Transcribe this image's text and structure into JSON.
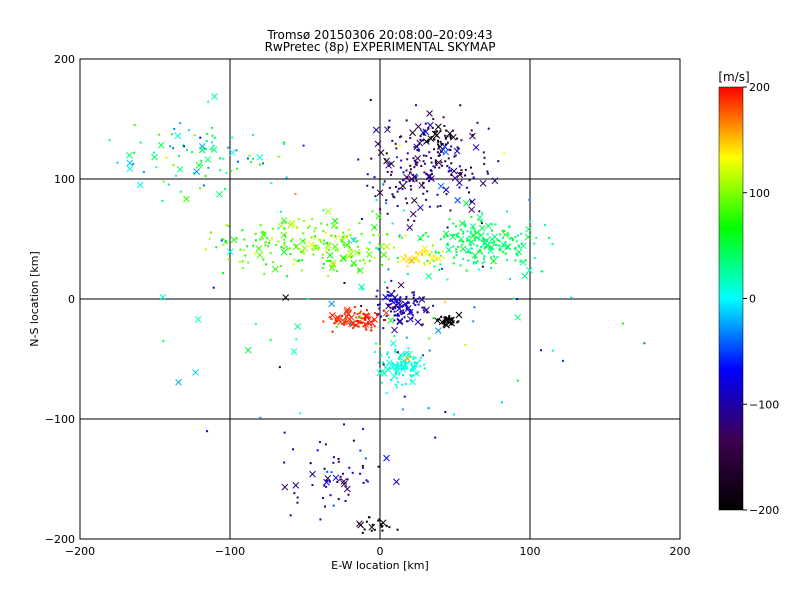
{
  "chart_data": {
    "type": "scatter",
    "title": "Tromsø 20150306 20:08:00–20:09:43",
    "subtitle": "RwPretec (8p) EXPERIMENTAL SKYMAP",
    "xlabel": "E-W location [km]",
    "ylabel": "N-S location [km]",
    "xlim": [
      -200,
      200
    ],
    "ylim": [
      -200,
      200
    ],
    "xticks": [
      "-200",
      "-100",
      "0",
      "100",
      "200"
    ],
    "yticks": [
      "-200",
      "-100",
      "0",
      "100",
      "200"
    ],
    "grid": true,
    "colorbar": {
      "label": "[m/s]",
      "range": [
        -200,
        200
      ],
      "ticks": [
        "-200",
        "-100",
        "0",
        "100",
        "200"
      ],
      "colormap": [
        "#000000",
        "#3d0050",
        "#0000ff",
        "#00ffff",
        "#00ff00",
        "#ffff00",
        "#ff0000"
      ]
    },
    "clusters": [
      {
        "name": "upper-left scatter",
        "x": -120,
        "y": 120,
        "sx": 45,
        "sy": 30,
        "count": 90,
        "v": 20,
        "vs": 70
      },
      {
        "name": "north cluster",
        "x": 30,
        "y": 110,
        "sx": 35,
        "sy": 35,
        "count": 230,
        "v": -120,
        "vs": 50
      },
      {
        "name": "northeast black",
        "x": 40,
        "y": 135,
        "sx": 10,
        "sy": 8,
        "count": 25,
        "v": -190,
        "vs": 10
      },
      {
        "name": "central yellow band",
        "x": -40,
        "y": 45,
        "sx": 60,
        "sy": 20,
        "count": 220,
        "v": 90,
        "vs": 30
      },
      {
        "name": "east green band",
        "x": 70,
        "y": 45,
        "sx": 30,
        "sy": 18,
        "count": 200,
        "v": 40,
        "vs": 25
      },
      {
        "name": "orange cluster",
        "x": 30,
        "y": 35,
        "sx": 15,
        "sy": 6,
        "count": 35,
        "v": 140,
        "vs": 15
      },
      {
        "name": "center blue",
        "x": 15,
        "y": -5,
        "sx": 15,
        "sy": 12,
        "count": 110,
        "v": -100,
        "vs": 25
      },
      {
        "name": "center red",
        "x": -15,
        "y": -18,
        "sx": 15,
        "sy": 7,
        "count": 90,
        "v": 190,
        "vs": 10
      },
      {
        "name": "east black",
        "x": 45,
        "y": -18,
        "sx": 8,
        "sy": 4,
        "count": 40,
        "v": -200,
        "vs": 5
      },
      {
        "name": "south green",
        "x": 15,
        "y": -55,
        "sx": 12,
        "sy": 12,
        "count": 100,
        "v": 10,
        "vs": 10
      },
      {
        "name": "south trail",
        "x": -30,
        "y": -150,
        "sx": 30,
        "sy": 30,
        "count": 60,
        "v": -100,
        "vs": 60
      },
      {
        "name": "bottom black",
        "x": 0,
        "y": -190,
        "sx": 15,
        "sy": 8,
        "count": 20,
        "v": -200,
        "vs": 5
      },
      {
        "name": "sparse background",
        "x": 0,
        "y": 0,
        "sx": 110,
        "sy": 110,
        "count": 100,
        "v": 0,
        "vs": 120
      }
    ]
  }
}
